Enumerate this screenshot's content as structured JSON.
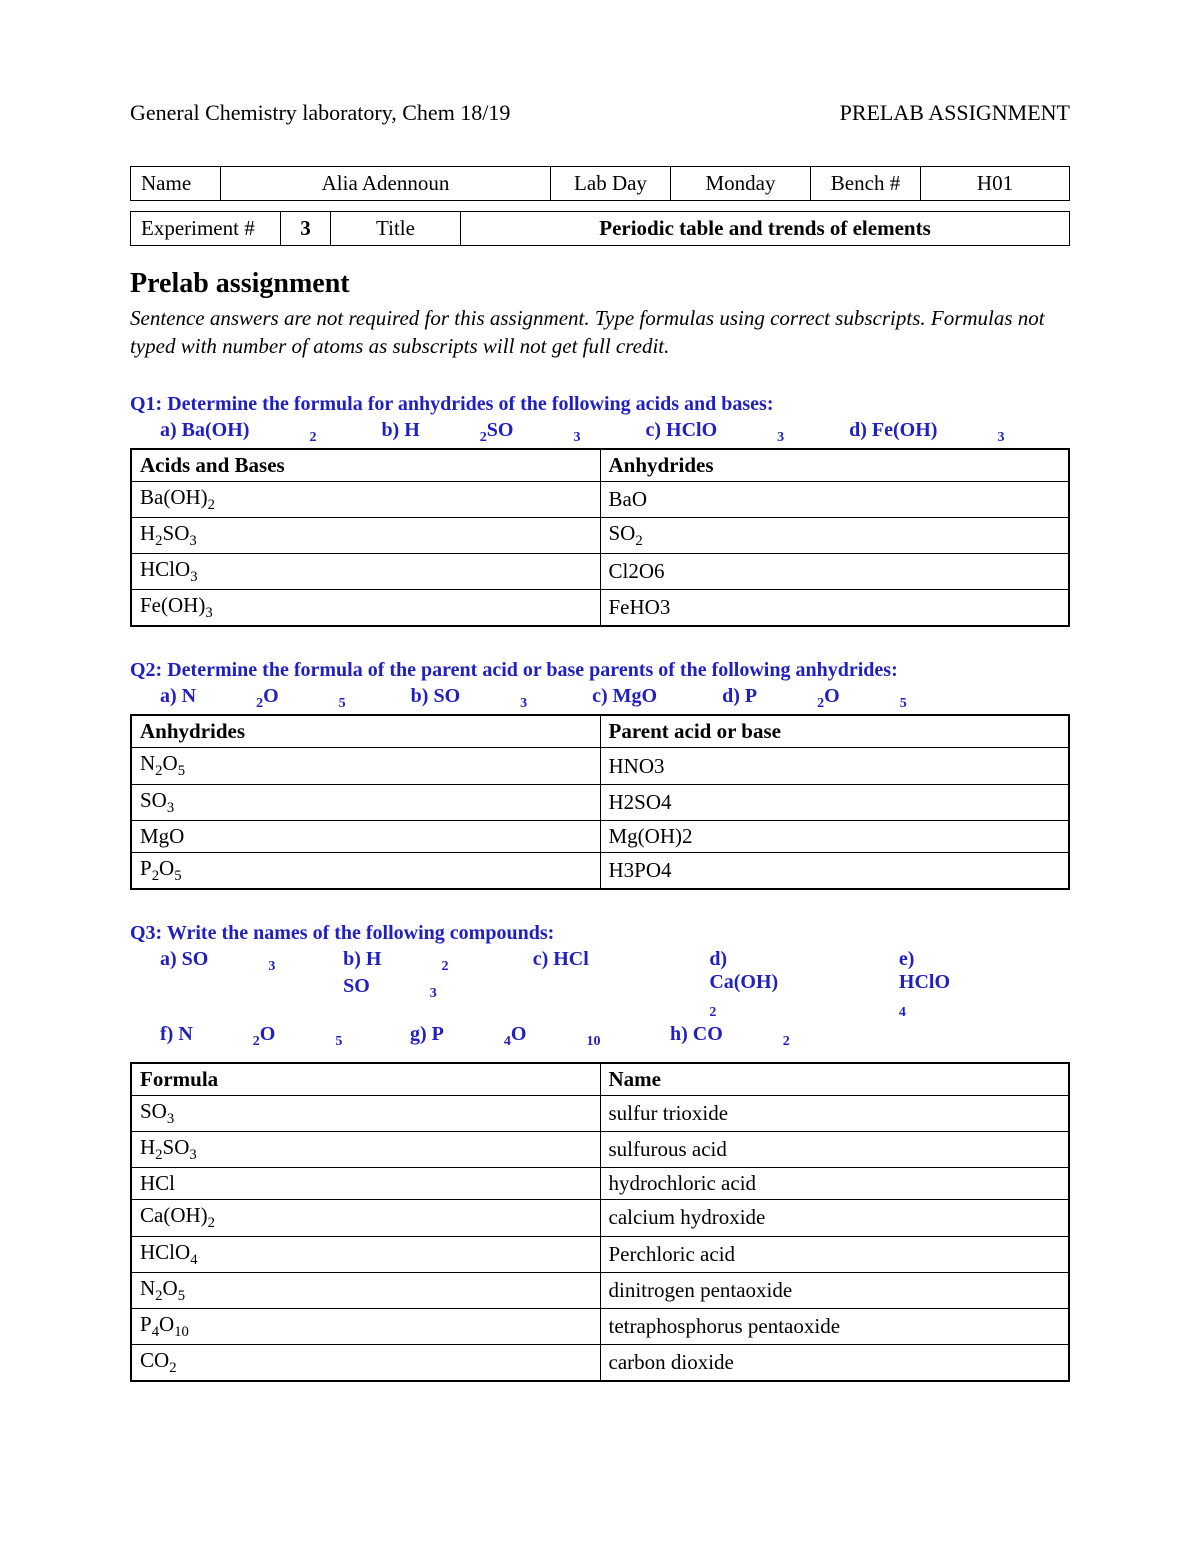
{
  "header": {
    "left": "General Chemistry laboratory, Chem 18/19",
    "right": "PRELAB ASSIGNMENT"
  },
  "info1": {
    "name_label": "Name",
    "name_value": "Alia Adennoun",
    "labday_label": "Lab Day",
    "labday_value": "Monday",
    "bench_label": "Bench #",
    "bench_value": "H01"
  },
  "info2": {
    "exp_label": "Experiment #",
    "exp_value": "3",
    "title_label": "Title",
    "title_value": "Periodic table and trends of elements"
  },
  "section_title": "Prelab assignment",
  "instructions": "Sentence answers are not required for this assignment. Type formulas using correct subscripts. Formulas not typed with number of atoms as subscripts will not get full credit.",
  "q1": {
    "prompt": "Q1: Determine the formula for anhydrides of the following acids and bases:",
    "opts": {
      "a": "a)  Ba(OH)",
      "a_sub": "2",
      "b": "b) H",
      "b_sub1": "2",
      "b_mid": "SO",
      "b_sub2": "3",
      "c": "c) HClO",
      "c_sub": "3",
      "d": "d) Fe(OH)",
      "d_sub": "3"
    },
    "columns": [
      "Acids and Bases",
      "Anhydrides"
    ],
    "rows": [
      {
        "l": "Ba(OH)",
        "lsub": "2",
        "r": "BaO"
      },
      {
        "l": "H",
        "lsub": "2",
        "lmid": "SO",
        "lsub2": "3",
        "r": " SO",
        "rsub": "2"
      },
      {
        "l": "HClO",
        "lsub": "3",
        "r": "Cl2O6"
      },
      {
        "l": "Fe(OH)",
        "lsub": "3",
        "r": "FeHO3"
      }
    ]
  },
  "q2": {
    "prompt": "Q2: Determine the formula of the parent acid or base parents of the following anhydrides:",
    "opts": {
      "a": "a)  N",
      "a_sub1": "2",
      "a_mid": "O",
      "a_sub2": "5",
      "b": "b) SO",
      "b_sub": "3",
      "c": "c) MgO",
      "d": "d) P",
      "d_sub1": "2",
      "d_mid": "O",
      "d_sub2": "5"
    },
    "columns": [
      "Anhydrides",
      "Parent acid or base"
    ],
    "rows": [
      {
        "l": "N",
        "lsub": "2",
        "lmid": "O",
        "lsub2": "5",
        "r": "HNO3"
      },
      {
        "l": "SO",
        "lsub": "3",
        "r": "H2SO4"
      },
      {
        "l": "MgO",
        "r": "Mg(OH)2"
      },
      {
        "l": "P",
        "lsub": "2",
        "lmid": "O",
        "lsub2": "5",
        "r": "H3PO4"
      }
    ]
  },
  "q3": {
    "prompt": "Q3: Write the names of the following compounds:",
    "opts_line1": {
      "a": "a)  SO",
      "a_sub": "3",
      "b": "b) H",
      "b_sub1": "2",
      "b_mid": "SO",
      "b_sub2": "3",
      "c": "c) HCl",
      "d": "d) Ca(OH)",
      "d_sub": "2",
      "e": "e) HClO",
      "e_sub": "4"
    },
    "opts_line2": {
      "f": "f) N",
      "f_sub1": "2",
      "f_mid": "O",
      "f_sub2": "5",
      "g": "g) P",
      "g_sub1": "4",
      "g_mid": "O",
      "g_sub2": "10",
      "h": "h) CO",
      "h_sub": "2"
    },
    "columns": [
      "Formula",
      "Name"
    ],
    "rows": [
      {
        "l": "SO",
        "lsub": "3",
        "r": "sulfur trioxide"
      },
      {
        "l": "H",
        "lsub": "2",
        "lmid": "SO",
        "lsub2": "3",
        "r": "sulfurous acid"
      },
      {
        "l": "HCl",
        "r": "hydrochloric acid"
      },
      {
        "l": "Ca(OH)",
        "lsub": "2",
        "r": "calcium hydroxide"
      },
      {
        "l": "HClO",
        "lsub": "4",
        "r": "Perchloric acid"
      },
      {
        "l": "N",
        "lsub": "2",
        "lmid": "O",
        "lsub2": "5",
        "r": "dinitrogen pentaoxide"
      },
      {
        "l": "P",
        "lsub": "4",
        "lmid": "O",
        "lsub2": "10",
        "r": "tetraphosphorus pentaoxide"
      },
      {
        "l": "CO",
        "lsub": "2",
        "r": "carbon dioxide"
      }
    ]
  }
}
